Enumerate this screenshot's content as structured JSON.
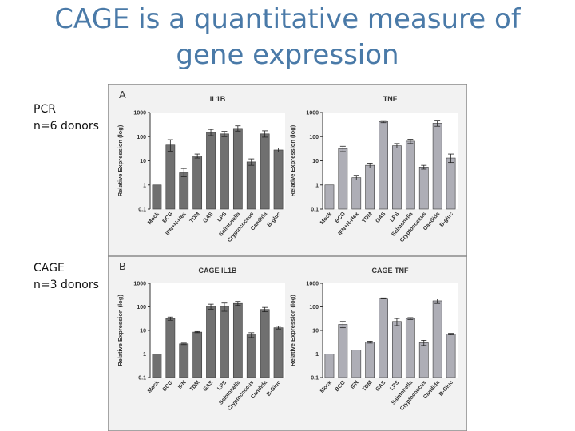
{
  "slide": {
    "title_line1": "CAGE is a quantitative measure of",
    "title_line2": "gene expression",
    "side_labels": [
      {
        "line1": "PCR",
        "line2": "n=6 donors"
      },
      {
        "line1": "CAGE",
        "line2": "n=3 donors"
      }
    ]
  },
  "figure": {
    "panel_letters": [
      "A",
      "B"
    ],
    "ylabel": "Relative Expression (log)",
    "yticks": [
      "1000",
      "100",
      "10",
      "1",
      "0.1"
    ]
  },
  "colors": {
    "il1b_bars": "#707070",
    "tnf_bars": "#aeaeb6",
    "panel_bg": "#f2f2f2",
    "plot_bg": "#ffffff",
    "title_blue": "#4a7aa8"
  },
  "chart_data": [
    {
      "type": "bar",
      "panel": "A",
      "title": "IL1B",
      "ylabel": "Relative Expression (log)",
      "yscale": "log",
      "ylim": [
        0.1,
        1000
      ],
      "categories": [
        "Mock",
        "BCG",
        "IFN+N-Hex",
        "TDM",
        "GAS",
        "LPS",
        "Salmonella",
        "Cryptococcus",
        "Candida",
        "B-gluc"
      ],
      "values": [
        1,
        45,
        3.2,
        16,
        150,
        130,
        220,
        9,
        130,
        28
      ],
      "error_low": [
        1,
        25,
        2.2,
        13,
        110,
        100,
        170,
        6.5,
        95,
        23
      ],
      "error_high": [
        1,
        75,
        4.8,
        19,
        200,
        165,
        280,
        12,
        175,
        34
      ]
    },
    {
      "type": "bar",
      "panel": "A",
      "title": "TNF",
      "ylabel": "Relative Expression (log)",
      "yscale": "log",
      "ylim": [
        0.1,
        1000
      ],
      "categories": [
        "Mock",
        "BCG",
        "IFN+N-Hex",
        "TDM",
        "GAS",
        "LPS",
        "Salmonella",
        "Cryptococcus",
        "Candida",
        "B-gluc"
      ],
      "values": [
        1,
        32,
        2,
        6.5,
        420,
        42,
        65,
        5.5,
        360,
        13
      ],
      "error_low": [
        1,
        24,
        1.6,
        5,
        380,
        34,
        52,
        4.5,
        270,
        8.5
      ],
      "error_high": [
        1,
        40,
        2.5,
        8,
        460,
        52,
        78,
        6.5,
        480,
        19
      ]
    },
    {
      "type": "bar",
      "panel": "B",
      "title": "CAGE IL1B",
      "ylabel": "Relative Expression (log)",
      "yscale": "log",
      "ylim": [
        0.1,
        1000
      ],
      "categories": [
        "Mock",
        "BCG",
        "IFN",
        "TDM",
        "GAS",
        "LPS",
        "Salmonella",
        "Cryptococcus",
        "Candida",
        "B-Gluc"
      ],
      "values": [
        1,
        32,
        2.7,
        8.5,
        105,
        105,
        140,
        6.5,
        78,
        13
      ],
      "error_low": [
        1,
        27,
        2.5,
        8,
        80,
        65,
        115,
        5,
        62,
        11.5
      ],
      "error_high": [
        1,
        37,
        2.9,
        9,
        130,
        145,
        170,
        8,
        95,
        15
      ]
    },
    {
      "type": "bar",
      "panel": "B",
      "title": "CAGE TNF",
      "ylabel": "Relative Expression (log)",
      "yscale": "log",
      "ylim": [
        0.1,
        1000
      ],
      "categories": [
        "Mock",
        "BCG",
        "IFN",
        "TDM",
        "GAS",
        "LPS",
        "Salmonella",
        "Cryptococcus",
        "Candida",
        "B-Gluc"
      ],
      "values": [
        1,
        18,
        1.5,
        3.2,
        230,
        24,
        32,
        3,
        180,
        7
      ],
      "error_low": [
        1,
        13,
        1.5,
        2.9,
        220,
        16,
        29,
        2.3,
        140,
        6.5
      ],
      "error_high": [
        1,
        24,
        1.5,
        3.5,
        240,
        32,
        35,
        3.8,
        220,
        7.5
      ]
    }
  ]
}
